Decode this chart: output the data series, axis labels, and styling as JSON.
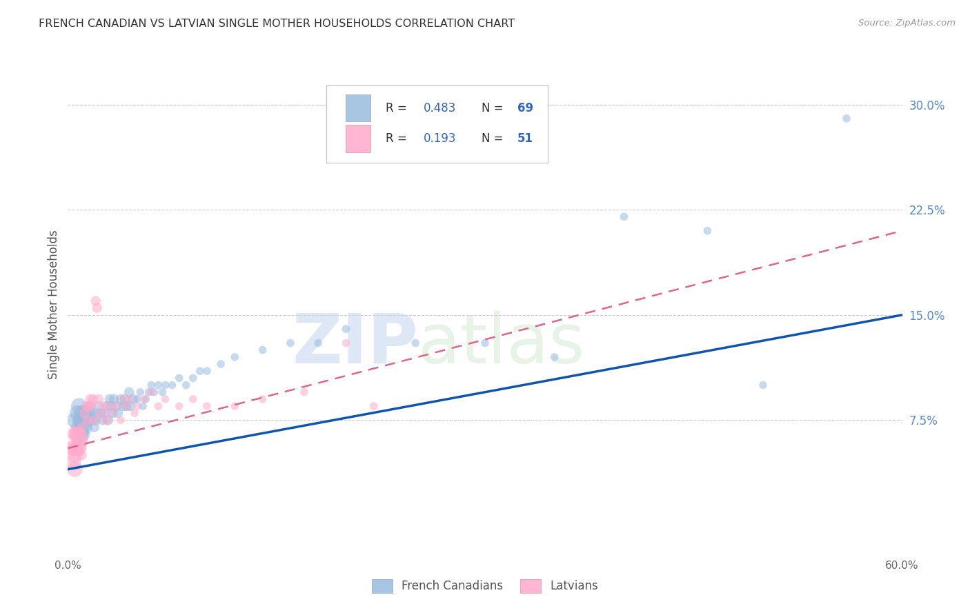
{
  "title": "FRENCH CANADIAN VS LATVIAN SINGLE MOTHER HOUSEHOLDS CORRELATION CHART",
  "source": "Source: ZipAtlas.com",
  "ylabel": "Single Mother Households",
  "xlim": [
    0.0,
    0.6
  ],
  "ylim": [
    -0.02,
    0.335
  ],
  "xticks": [
    0.0,
    0.1,
    0.2,
    0.3,
    0.4,
    0.5,
    0.6
  ],
  "xticklabels": [
    "0.0%",
    "",
    "",
    "",
    "",
    "",
    "60.0%"
  ],
  "yticks_right": [
    0.075,
    0.15,
    0.225,
    0.3
  ],
  "ytick_right_labels": [
    "7.5%",
    "15.0%",
    "22.5%",
    "30.0%"
  ],
  "legend_r1": "R =  0.483",
  "legend_n1": "N = 69",
  "legend_r2": "R =  0.193",
  "legend_n2": "N = 51",
  "color_blue": "#99BBDD",
  "color_pink": "#FFAACC",
  "color_blue_line": "#1155AA",
  "color_pink_line": "#DD6688",
  "watermark_zip": "ZIP",
  "watermark_atlas": "atlas",
  "blue_scatter_x": [
    0.005,
    0.007,
    0.008,
    0.008,
    0.009,
    0.009,
    0.01,
    0.01,
    0.01,
    0.01,
    0.012,
    0.012,
    0.013,
    0.014,
    0.015,
    0.016,
    0.017,
    0.018,
    0.019,
    0.02,
    0.02,
    0.022,
    0.024,
    0.025,
    0.026,
    0.028,
    0.029,
    0.03,
    0.031,
    0.032,
    0.033,
    0.035,
    0.036,
    0.038,
    0.04,
    0.041,
    0.042,
    0.044,
    0.045,
    0.047,
    0.05,
    0.052,
    0.054,
    0.056,
    0.058,
    0.06,
    0.062,
    0.065,
    0.068,
    0.07,
    0.075,
    0.08,
    0.085,
    0.09,
    0.095,
    0.1,
    0.11,
    0.12,
    0.14,
    0.16,
    0.18,
    0.2,
    0.25,
    0.3,
    0.35,
    0.4,
    0.46,
    0.5,
    0.56
  ],
  "blue_scatter_y": [
    0.075,
    0.08,
    0.07,
    0.085,
    0.075,
    0.065,
    0.08,
    0.075,
    0.07,
    0.065,
    0.08,
    0.07,
    0.075,
    0.08,
    0.075,
    0.085,
    0.08,
    0.075,
    0.07,
    0.08,
    0.075,
    0.085,
    0.08,
    0.075,
    0.08,
    0.085,
    0.075,
    0.09,
    0.085,
    0.08,
    0.09,
    0.085,
    0.08,
    0.09,
    0.085,
    0.09,
    0.085,
    0.095,
    0.085,
    0.09,
    0.09,
    0.095,
    0.085,
    0.09,
    0.095,
    0.1,
    0.095,
    0.1,
    0.095,
    0.1,
    0.1,
    0.105,
    0.1,
    0.105,
    0.11,
    0.11,
    0.115,
    0.12,
    0.125,
    0.13,
    0.13,
    0.14,
    0.13,
    0.13,
    0.12,
    0.22,
    0.21,
    0.1,
    0.29
  ],
  "pink_scatter_x": [
    0.003,
    0.004,
    0.005,
    0.005,
    0.005,
    0.005,
    0.006,
    0.006,
    0.007,
    0.007,
    0.008,
    0.008,
    0.009,
    0.01,
    0.01,
    0.01,
    0.012,
    0.013,
    0.014,
    0.015,
    0.016,
    0.017,
    0.018,
    0.019,
    0.02,
    0.021,
    0.022,
    0.024,
    0.026,
    0.028,
    0.03,
    0.032,
    0.035,
    0.038,
    0.04,
    0.042,
    0.045,
    0.048,
    0.05,
    0.055,
    0.06,
    0.065,
    0.07,
    0.08,
    0.09,
    0.1,
    0.12,
    0.14,
    0.17,
    0.2,
    0.22
  ],
  "pink_scatter_y": [
    0.055,
    0.045,
    0.065,
    0.055,
    0.05,
    0.04,
    0.065,
    0.055,
    0.065,
    0.055,
    0.065,
    0.055,
    0.06,
    0.07,
    0.06,
    0.05,
    0.08,
    0.085,
    0.075,
    0.085,
    0.09,
    0.085,
    0.09,
    0.075,
    0.16,
    0.155,
    0.09,
    0.08,
    0.085,
    0.075,
    0.085,
    0.08,
    0.085,
    0.075,
    0.09,
    0.085,
    0.09,
    0.08,
    0.085,
    0.09,
    0.095,
    0.085,
    0.09,
    0.085,
    0.09,
    0.085,
    0.085,
    0.09,
    0.095,
    0.13,
    0.085
  ],
  "blue_line_x": [
    0.0,
    0.6
  ],
  "blue_line_y": [
    0.04,
    0.15
  ],
  "pink_line_x": [
    0.0,
    0.6
  ],
  "pink_line_y": [
    0.055,
    0.21
  ],
  "dot_size_base": 70,
  "dot_alpha": 0.55,
  "bg_color": "#FFFFFF",
  "grid_color": "#CCCCCC",
  "title_color": "#333333",
  "axis_label_color": "#555555",
  "right_tick_color": "#5588CC",
  "legend_text_color": "#333333",
  "legend_val_color": "#3366BB"
}
